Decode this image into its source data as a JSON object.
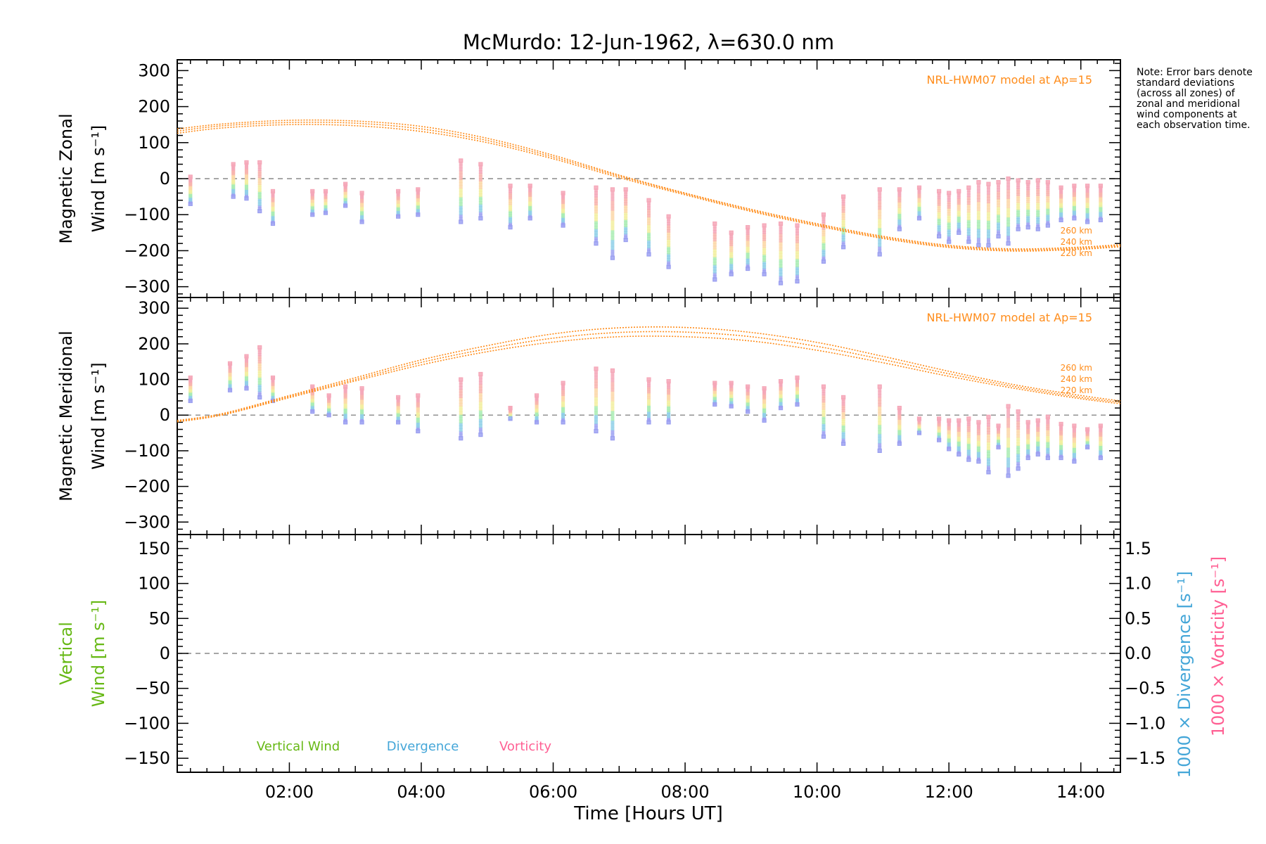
{
  "title": "McMurdo: 12-Jun-1962, λ=630.0 nm",
  "note": "Note: Error bars denote standard deviations (across all zones) of zonal and meridional wind components at each observation time.",
  "colors": {
    "model": "#ff8c1a",
    "vertical": "#66b814",
    "divergence": "#44a6d8",
    "vorticity": "#ff5f93",
    "zero_line": "#888888",
    "axes": "#000000"
  },
  "chart_data": [
    {
      "type": "scatter",
      "panel": "zonal",
      "ylabel": [
        "Magnetic Zonal",
        "Wind [m s⁻¹]"
      ],
      "ylim": [
        -330,
        330
      ],
      "yticks": [
        -300,
        -200,
        -100,
        0,
        100,
        200,
        300
      ],
      "xlim": [
        0.3,
        14.6
      ],
      "model_label": "NRL-HWM07 model at Ap=15",
      "model_series": [
        {
          "name": "260 km",
          "x": [
            0.3,
            1,
            2,
            3,
            4,
            5,
            6,
            7,
            8,
            9,
            10,
            11,
            12,
            13,
            14,
            14.6
          ],
          "y": [
            138,
            152,
            162,
            160,
            145,
            112,
            65,
            10,
            -40,
            -85,
            -125,
            -160,
            -185,
            -195,
            -190,
            -183
          ]
        },
        {
          "name": "240 km",
          "x": [
            0.3,
            1,
            2,
            3,
            4,
            5,
            6,
            7,
            8,
            9,
            10,
            11,
            12,
            13,
            14,
            14.6
          ],
          "y": [
            132,
            147,
            156,
            154,
            138,
            106,
            60,
            7,
            -42,
            -88,
            -128,
            -163,
            -188,
            -198,
            -193,
            -186
          ]
        },
        {
          "name": "220 km",
          "x": [
            0.3,
            1,
            2,
            3,
            4,
            5,
            6,
            7,
            8,
            9,
            10,
            11,
            12,
            13,
            14,
            14.6
          ],
          "y": [
            126,
            141,
            150,
            147,
            131,
            100,
            55,
            3,
            -45,
            -91,
            -131,
            -166,
            -191,
            -201,
            -196,
            -189
          ]
        }
      ],
      "observations": [
        {
          "x": 0.5,
          "min": -70,
          "max": 5
        },
        {
          "x": 1.15,
          "min": -50,
          "max": 40
        },
        {
          "x": 1.35,
          "min": -55,
          "max": 45
        },
        {
          "x": 1.55,
          "min": -90,
          "max": 45
        },
        {
          "x": 1.75,
          "min": -125,
          "max": -35
        },
        {
          "x": 2.35,
          "min": -100,
          "max": -35
        },
        {
          "x": 2.55,
          "min": -95,
          "max": -35
        },
        {
          "x": 2.85,
          "min": -75,
          "max": -15
        },
        {
          "x": 3.1,
          "min": -120,
          "max": -40
        },
        {
          "x": 3.65,
          "min": -105,
          "max": -35
        },
        {
          "x": 3.95,
          "min": -100,
          "max": -30
        },
        {
          "x": 4.6,
          "min": -120,
          "max": 50
        },
        {
          "x": 4.9,
          "min": -110,
          "max": 40
        },
        {
          "x": 5.35,
          "min": -135,
          "max": -20
        },
        {
          "x": 5.65,
          "min": -110,
          "max": -20
        },
        {
          "x": 6.15,
          "min": -130,
          "max": -40
        },
        {
          "x": 6.65,
          "min": -180,
          "max": -25
        },
        {
          "x": 6.9,
          "min": -220,
          "max": -30
        },
        {
          "x": 7.1,
          "min": -170,
          "max": -30
        },
        {
          "x": 7.45,
          "min": -210,
          "max": -60
        },
        {
          "x": 7.75,
          "min": -245,
          "max": -105
        },
        {
          "x": 8.45,
          "min": -280,
          "max": -125
        },
        {
          "x": 8.7,
          "min": -265,
          "max": -150
        },
        {
          "x": 8.95,
          "min": -250,
          "max": -135
        },
        {
          "x": 9.2,
          "min": -265,
          "max": -130
        },
        {
          "x": 9.45,
          "min": -290,
          "max": -125
        },
        {
          "x": 9.7,
          "min": -285,
          "max": -130
        },
        {
          "x": 10.1,
          "min": -230,
          "max": -100
        },
        {
          "x": 10.4,
          "min": -190,
          "max": -50
        },
        {
          "x": 10.95,
          "min": -210,
          "max": -30
        },
        {
          "x": 11.25,
          "min": -140,
          "max": -30
        },
        {
          "x": 11.55,
          "min": -110,
          "max": -25
        },
        {
          "x": 11.85,
          "min": -160,
          "max": -35
        },
        {
          "x": 12.0,
          "min": -175,
          "max": -40
        },
        {
          "x": 12.15,
          "min": -150,
          "max": -35
        },
        {
          "x": 12.3,
          "min": -175,
          "max": -25
        },
        {
          "x": 12.45,
          "min": -185,
          "max": -10
        },
        {
          "x": 12.6,
          "min": -185,
          "max": -15
        },
        {
          "x": 12.75,
          "min": -160,
          "max": -10
        },
        {
          "x": 12.9,
          "min": -180,
          "max": 0
        },
        {
          "x": 13.05,
          "min": -140,
          "max": -5
        },
        {
          "x": 13.2,
          "min": -135,
          "max": -10
        },
        {
          "x": 13.35,
          "min": -140,
          "max": -5
        },
        {
          "x": 13.5,
          "min": -130,
          "max": -10
        },
        {
          "x": 13.7,
          "min": -115,
          "max": -25
        },
        {
          "x": 13.9,
          "min": -110,
          "max": -20
        },
        {
          "x": 14.1,
          "min": -120,
          "max": -20
        },
        {
          "x": 14.3,
          "min": -115,
          "max": -20
        }
      ]
    },
    {
      "type": "scatter",
      "panel": "meridional",
      "ylabel": [
        "Magnetic Meridional",
        "Wind [m s⁻¹]"
      ],
      "ylim": [
        -335,
        330
      ],
      "yticks": [
        -300,
        -200,
        -100,
        0,
        100,
        200,
        300
      ],
      "xlim": [
        0.3,
        14.6
      ],
      "model_label": "NRL-HWM07 model at Ap=15",
      "model_series": [
        {
          "name": "260 km",
          "x": [
            0.3,
            1,
            2,
            3,
            4,
            5,
            6,
            7,
            8,
            9,
            10,
            11,
            12,
            13,
            14,
            14.6
          ],
          "y": [
            -15,
            5,
            55,
            105,
            155,
            195,
            228,
            245,
            246,
            232,
            204,
            165,
            123,
            85,
            55,
            40
          ]
        },
        {
          "name": "240 km",
          "x": [
            0.3,
            1,
            2,
            3,
            4,
            5,
            6,
            7,
            8,
            9,
            10,
            11,
            12,
            13,
            14,
            14.6
          ],
          "y": [
            -17,
            3,
            52,
            100,
            148,
            186,
            216,
            232,
            233,
            220,
            193,
            156,
            116,
            80,
            50,
            36
          ]
        },
        {
          "name": "220 km",
          "x": [
            0.3,
            1,
            2,
            3,
            4,
            5,
            6,
            7,
            8,
            9,
            10,
            11,
            12,
            13,
            14,
            14.6
          ],
          "y": [
            -19,
            1,
            49,
            96,
            141,
            178,
            205,
            220,
            220,
            208,
            182,
            147,
            109,
            75,
            46,
            32
          ]
        }
      ],
      "observations": [
        {
          "x": 0.5,
          "min": 40,
          "max": 105
        },
        {
          "x": 1.1,
          "min": 70,
          "max": 145
        },
        {
          "x": 1.35,
          "min": 75,
          "max": 165
        },
        {
          "x": 1.55,
          "min": 50,
          "max": 190
        },
        {
          "x": 1.75,
          "min": 40,
          "max": 105
        },
        {
          "x": 2.35,
          "min": 10,
          "max": 80
        },
        {
          "x": 2.6,
          "min": 0,
          "max": 55
        },
        {
          "x": 2.85,
          "min": -20,
          "max": 80
        },
        {
          "x": 3.1,
          "min": -20,
          "max": 75
        },
        {
          "x": 3.65,
          "min": -20,
          "max": 50
        },
        {
          "x": 3.95,
          "min": -45,
          "max": 55
        },
        {
          "x": 4.6,
          "min": -65,
          "max": 100
        },
        {
          "x": 4.9,
          "min": -55,
          "max": 115
        },
        {
          "x": 5.35,
          "min": -10,
          "max": 20
        },
        {
          "x": 5.75,
          "min": -20,
          "max": 55
        },
        {
          "x": 6.15,
          "min": -20,
          "max": 90
        },
        {
          "x": 6.65,
          "min": -45,
          "max": 130
        },
        {
          "x": 6.9,
          "min": -65,
          "max": 125
        },
        {
          "x": 7.45,
          "min": -20,
          "max": 100
        },
        {
          "x": 7.75,
          "min": -20,
          "max": 95
        },
        {
          "x": 8.45,
          "min": 30,
          "max": 90
        },
        {
          "x": 8.7,
          "min": 25,
          "max": 90
        },
        {
          "x": 8.95,
          "min": 10,
          "max": 80
        },
        {
          "x": 9.2,
          "min": -15,
          "max": 75
        },
        {
          "x": 9.45,
          "min": 20,
          "max": 95
        },
        {
          "x": 9.7,
          "min": 30,
          "max": 105
        },
        {
          "x": 10.1,
          "min": -60,
          "max": 80
        },
        {
          "x": 10.4,
          "min": -80,
          "max": 50
        },
        {
          "x": 10.95,
          "min": -100,
          "max": 80
        },
        {
          "x": 11.25,
          "min": -80,
          "max": 20
        },
        {
          "x": 11.55,
          "min": -50,
          "max": -10
        },
        {
          "x": 11.85,
          "min": -70,
          "max": -10
        },
        {
          "x": 12.0,
          "min": -95,
          "max": -15
        },
        {
          "x": 12.15,
          "min": -110,
          "max": -15
        },
        {
          "x": 12.3,
          "min": -125,
          "max": -10
        },
        {
          "x": 12.45,
          "min": -130,
          "max": -20
        },
        {
          "x": 12.6,
          "min": -160,
          "max": -5
        },
        {
          "x": 12.75,
          "min": -90,
          "max": -30
        },
        {
          "x": 12.9,
          "min": -170,
          "max": 25
        },
        {
          "x": 13.05,
          "min": -150,
          "max": 10
        },
        {
          "x": 13.2,
          "min": -120,
          "max": -20
        },
        {
          "x": 13.35,
          "min": -110,
          "max": -15
        },
        {
          "x": 13.5,
          "min": -120,
          "max": -5
        },
        {
          "x": 13.7,
          "min": -120,
          "max": -25
        },
        {
          "x": 13.9,
          "min": -130,
          "max": -30
        },
        {
          "x": 14.1,
          "min": -90,
          "max": -40
        },
        {
          "x": 14.3,
          "min": -120,
          "max": -30
        }
      ]
    },
    {
      "type": "line",
      "panel": "vertical",
      "ylabel": [
        "Vertical",
        "Wind [m s⁻¹]"
      ],
      "ylabel_right": [
        "1000 × Divergence [s⁻¹]",
        "1000 × Vorticity [s⁻¹]"
      ],
      "ylim": [
        -170,
        170
      ],
      "yticks": [
        -150,
        -100,
        -50,
        0,
        50,
        100,
        150
      ],
      "y2ticks": [
        -1.5,
        -1.0,
        -0.5,
        0.0,
        0.5,
        1.0,
        1.5
      ],
      "xlim": [
        0.3,
        14.6
      ],
      "legend": [
        "Vertical Wind",
        "Divergence",
        "Vorticity"
      ],
      "series": []
    }
  ],
  "xaxis": {
    "xlabel": "Time [Hours UT]",
    "ticks": [
      {
        "x": 2,
        "label": "02:00"
      },
      {
        "x": 4,
        "label": "04:00"
      },
      {
        "x": 6,
        "label": "06:00"
      },
      {
        "x": 8,
        "label": "08:00"
      },
      {
        "x": 10,
        "label": "10:00"
      },
      {
        "x": 12,
        "label": "12:00"
      },
      {
        "x": 14,
        "label": "14:00"
      }
    ]
  }
}
